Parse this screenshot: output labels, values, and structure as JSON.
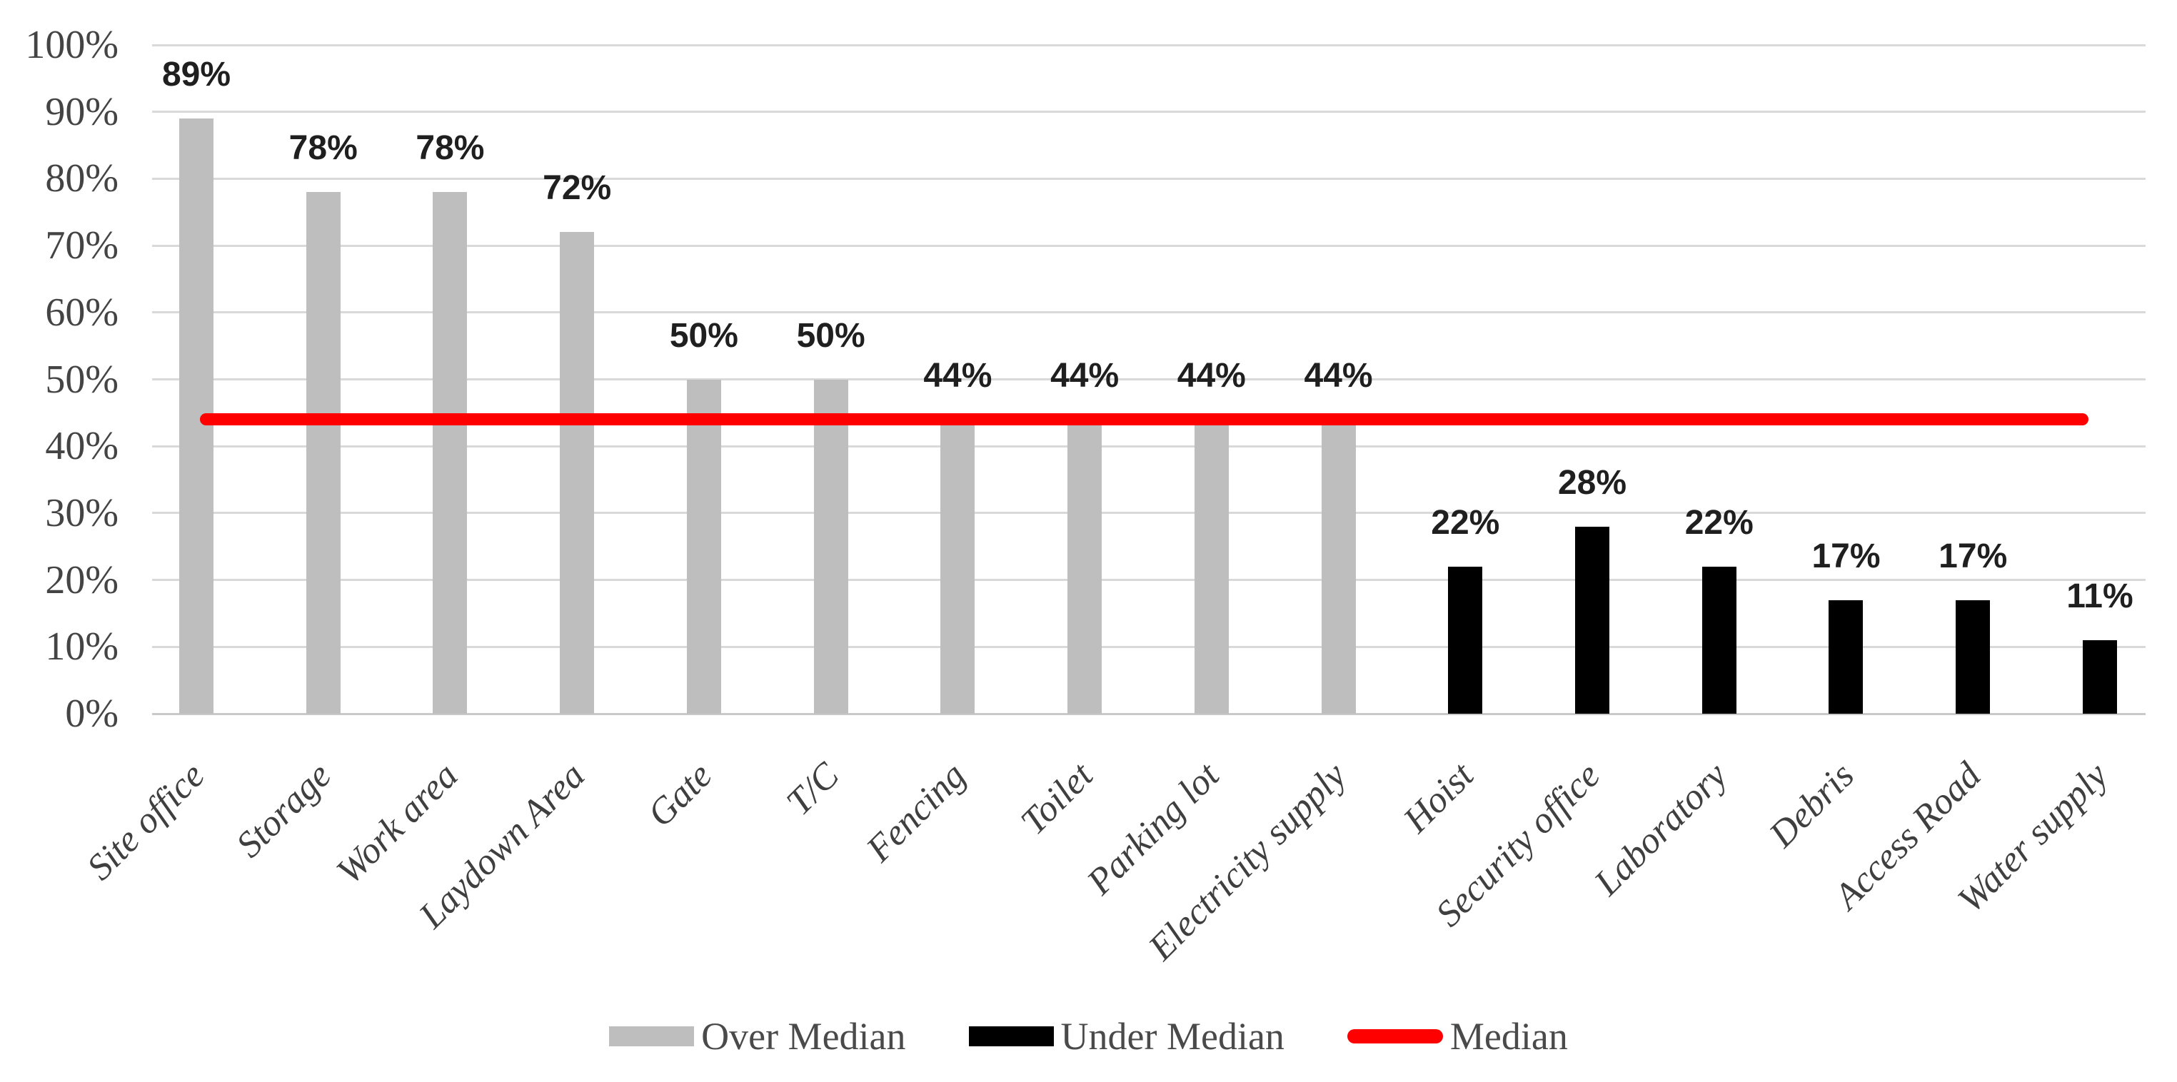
{
  "chart_data": {
    "type": "bar",
    "categories": [
      "Site office",
      "Storage",
      "Work area",
      "Laydown Area",
      "Gate",
      "T/C",
      "Fencing",
      "Toilet",
      "Parking lot",
      "Electricity supply",
      "Hoist",
      "Security office",
      "Laboratory",
      "Debris",
      "Access Road",
      "Water supply"
    ],
    "values": [
      89,
      78,
      78,
      72,
      50,
      50,
      44,
      44,
      44,
      44,
      22,
      28,
      22,
      17,
      17,
      11
    ],
    "groups": [
      "over",
      "over",
      "over",
      "over",
      "over",
      "over",
      "over",
      "over",
      "over",
      "over",
      "under",
      "under",
      "under",
      "under",
      "under",
      "under"
    ],
    "data_labels": [
      "89%",
      "78%",
      "78%",
      "72%",
      "50%",
      "50%",
      "44%",
      "44%",
      "44%",
      "44%",
      "22%",
      "28%",
      "22%",
      "17%",
      "17%",
      "11%"
    ],
    "median": {
      "label": "Median",
      "value": 44
    },
    "y_axis": {
      "min": 0,
      "max": 100,
      "ticks": [
        100,
        90,
        80,
        70,
        60,
        50,
        40,
        30,
        20,
        10,
        0
      ],
      "tick_suffix": "%"
    },
    "legend": [
      {
        "label": "Over Median",
        "key": "over",
        "swatch": "rect"
      },
      {
        "label": "Under Median",
        "key": "under",
        "swatch": "rect"
      },
      {
        "label": "Median",
        "key": "median",
        "swatch": "line"
      }
    ],
    "legend_position": "bottom-center",
    "grid": true,
    "colors": {
      "over": "#BEBEBE",
      "under": "#000000",
      "median": "#FF0000",
      "gridline": "#D9D9D9",
      "tick_text": "#444444",
      "category_text": "#3F3F3F",
      "data_label_text": "#1F1F1F",
      "legend_text": "#4A4A4A"
    }
  }
}
